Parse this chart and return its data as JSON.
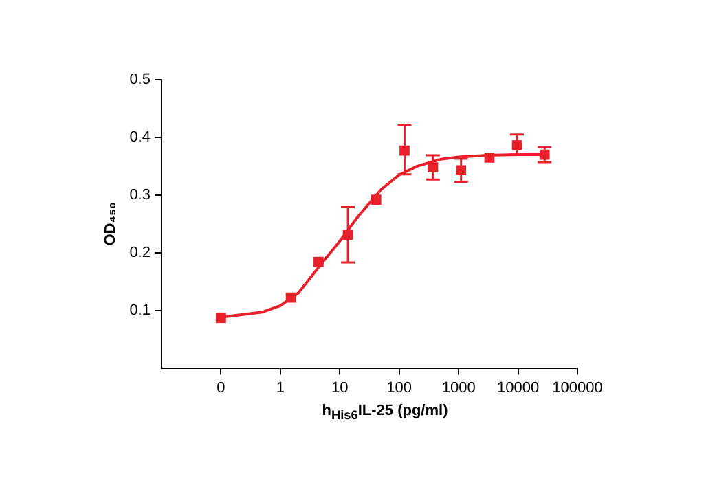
{
  "chart_data": {
    "type": "scatter",
    "xlabel": "h$_{His6}$IL-25 (pg/ml)",
    "ylabel": "OD₄₅₀",
    "log": "x",
    "xlim": [
      0.01,
      100000
    ],
    "xticks": [
      {
        "value": 0.1,
        "label": "0"
      },
      1,
      10,
      100,
      1000,
      10000,
      100000
    ],
    "ylim": [
      0,
      0.5
    ],
    "yticks": [
      0.1,
      0.2,
      0.3,
      0.4,
      0.5
    ],
    "grid": false,
    "legend": false,
    "series": [
      {
        "color": "#e8202a",
        "marker": "square",
        "x": [
          0.1,
          1.5,
          4.4,
          13.7,
          41,
          123,
          370,
          1100,
          3300,
          9600,
          28000
        ],
        "values": [
          0.087,
          0.122,
          0.184,
          0.231,
          0.292,
          0.377,
          0.348,
          0.343,
          0.365,
          0.386,
          0.37
        ],
        "errors": [
          null,
          null,
          null,
          0.048,
          null,
          [
            0.336,
            0.422
          ],
          0.021,
          0.02,
          null,
          [
            0.37,
            0.405
          ],
          0.013
        ]
      },
      {
        "type": "line",
        "color": "#e8202a",
        "marker": "none",
        "line_style": "solid",
        "x": [
          0.1,
          0.5,
          1,
          2,
          5,
          10,
          20,
          50,
          100,
          200,
          500,
          1000,
          3000,
          10000,
          30000
        ],
        "values": [
          0.088,
          0.097,
          0.108,
          0.13,
          0.182,
          0.22,
          0.262,
          0.31,
          0.335,
          0.35,
          0.362,
          0.366,
          0.369,
          0.37,
          0.37
        ]
      }
    ]
  }
}
